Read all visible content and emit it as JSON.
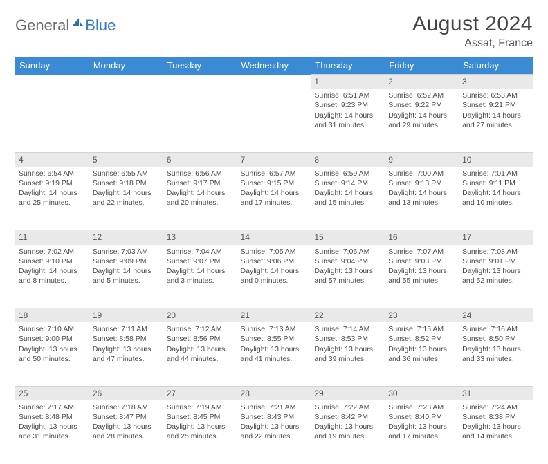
{
  "brand": {
    "part1": "General",
    "part2": "Blue"
  },
  "title": "August 2024",
  "location": "Assat, France",
  "colors": {
    "header_bg": "#3b8bd4",
    "header_fg": "#ffffff",
    "daynum_bg": "#e9e9e9",
    "row_divider": "#c8d4e0",
    "logo_gray": "#6b6b6b",
    "logo_blue": "#3b7cbf",
    "text": "#4a4a4a",
    "title_color": "#444444"
  },
  "weekdays": [
    "Sunday",
    "Monday",
    "Tuesday",
    "Wednesday",
    "Thursday",
    "Friday",
    "Saturday"
  ],
  "weeks": [
    [
      null,
      null,
      null,
      null,
      {
        "n": "1",
        "sunrise": "6:51 AM",
        "sunset": "9:23 PM",
        "daylight": "14 hours and 31 minutes."
      },
      {
        "n": "2",
        "sunrise": "6:52 AM",
        "sunset": "9:22 PM",
        "daylight": "14 hours and 29 minutes."
      },
      {
        "n": "3",
        "sunrise": "6:53 AM",
        "sunset": "9:21 PM",
        "daylight": "14 hours and 27 minutes."
      }
    ],
    [
      {
        "n": "4",
        "sunrise": "6:54 AM",
        "sunset": "9:19 PM",
        "daylight": "14 hours and 25 minutes."
      },
      {
        "n": "5",
        "sunrise": "6:55 AM",
        "sunset": "9:18 PM",
        "daylight": "14 hours and 22 minutes."
      },
      {
        "n": "6",
        "sunrise": "6:56 AM",
        "sunset": "9:17 PM",
        "daylight": "14 hours and 20 minutes."
      },
      {
        "n": "7",
        "sunrise": "6:57 AM",
        "sunset": "9:15 PM",
        "daylight": "14 hours and 17 minutes."
      },
      {
        "n": "8",
        "sunrise": "6:59 AM",
        "sunset": "9:14 PM",
        "daylight": "14 hours and 15 minutes."
      },
      {
        "n": "9",
        "sunrise": "7:00 AM",
        "sunset": "9:13 PM",
        "daylight": "14 hours and 13 minutes."
      },
      {
        "n": "10",
        "sunrise": "7:01 AM",
        "sunset": "9:11 PM",
        "daylight": "14 hours and 10 minutes."
      }
    ],
    [
      {
        "n": "11",
        "sunrise": "7:02 AM",
        "sunset": "9:10 PM",
        "daylight": "14 hours and 8 minutes."
      },
      {
        "n": "12",
        "sunrise": "7:03 AM",
        "sunset": "9:09 PM",
        "daylight": "14 hours and 5 minutes."
      },
      {
        "n": "13",
        "sunrise": "7:04 AM",
        "sunset": "9:07 PM",
        "daylight": "14 hours and 3 minutes."
      },
      {
        "n": "14",
        "sunrise": "7:05 AM",
        "sunset": "9:06 PM",
        "daylight": "14 hours and 0 minutes."
      },
      {
        "n": "15",
        "sunrise": "7:06 AM",
        "sunset": "9:04 PM",
        "daylight": "13 hours and 57 minutes."
      },
      {
        "n": "16",
        "sunrise": "7:07 AM",
        "sunset": "9:03 PM",
        "daylight": "13 hours and 55 minutes."
      },
      {
        "n": "17",
        "sunrise": "7:08 AM",
        "sunset": "9:01 PM",
        "daylight": "13 hours and 52 minutes."
      }
    ],
    [
      {
        "n": "18",
        "sunrise": "7:10 AM",
        "sunset": "9:00 PM",
        "daylight": "13 hours and 50 minutes."
      },
      {
        "n": "19",
        "sunrise": "7:11 AM",
        "sunset": "8:58 PM",
        "daylight": "13 hours and 47 minutes."
      },
      {
        "n": "20",
        "sunrise": "7:12 AM",
        "sunset": "8:56 PM",
        "daylight": "13 hours and 44 minutes."
      },
      {
        "n": "21",
        "sunrise": "7:13 AM",
        "sunset": "8:55 PM",
        "daylight": "13 hours and 41 minutes."
      },
      {
        "n": "22",
        "sunrise": "7:14 AM",
        "sunset": "8:53 PM",
        "daylight": "13 hours and 39 minutes."
      },
      {
        "n": "23",
        "sunrise": "7:15 AM",
        "sunset": "8:52 PM",
        "daylight": "13 hours and 36 minutes."
      },
      {
        "n": "24",
        "sunrise": "7:16 AM",
        "sunset": "8:50 PM",
        "daylight": "13 hours and 33 minutes."
      }
    ],
    [
      {
        "n": "25",
        "sunrise": "7:17 AM",
        "sunset": "8:48 PM",
        "daylight": "13 hours and 31 minutes."
      },
      {
        "n": "26",
        "sunrise": "7:18 AM",
        "sunset": "8:47 PM",
        "daylight": "13 hours and 28 minutes."
      },
      {
        "n": "27",
        "sunrise": "7:19 AM",
        "sunset": "8:45 PM",
        "daylight": "13 hours and 25 minutes."
      },
      {
        "n": "28",
        "sunrise": "7:21 AM",
        "sunset": "8:43 PM",
        "daylight": "13 hours and 22 minutes."
      },
      {
        "n": "29",
        "sunrise": "7:22 AM",
        "sunset": "8:42 PM",
        "daylight": "13 hours and 19 minutes."
      },
      {
        "n": "30",
        "sunrise": "7:23 AM",
        "sunset": "8:40 PM",
        "daylight": "13 hours and 17 minutes."
      },
      {
        "n": "31",
        "sunrise": "7:24 AM",
        "sunset": "8:38 PM",
        "daylight": "13 hours and 14 minutes."
      }
    ]
  ],
  "labels": {
    "sunrise_prefix": "Sunrise: ",
    "sunset_prefix": "Sunset: ",
    "daylight_prefix": "Daylight: "
  }
}
